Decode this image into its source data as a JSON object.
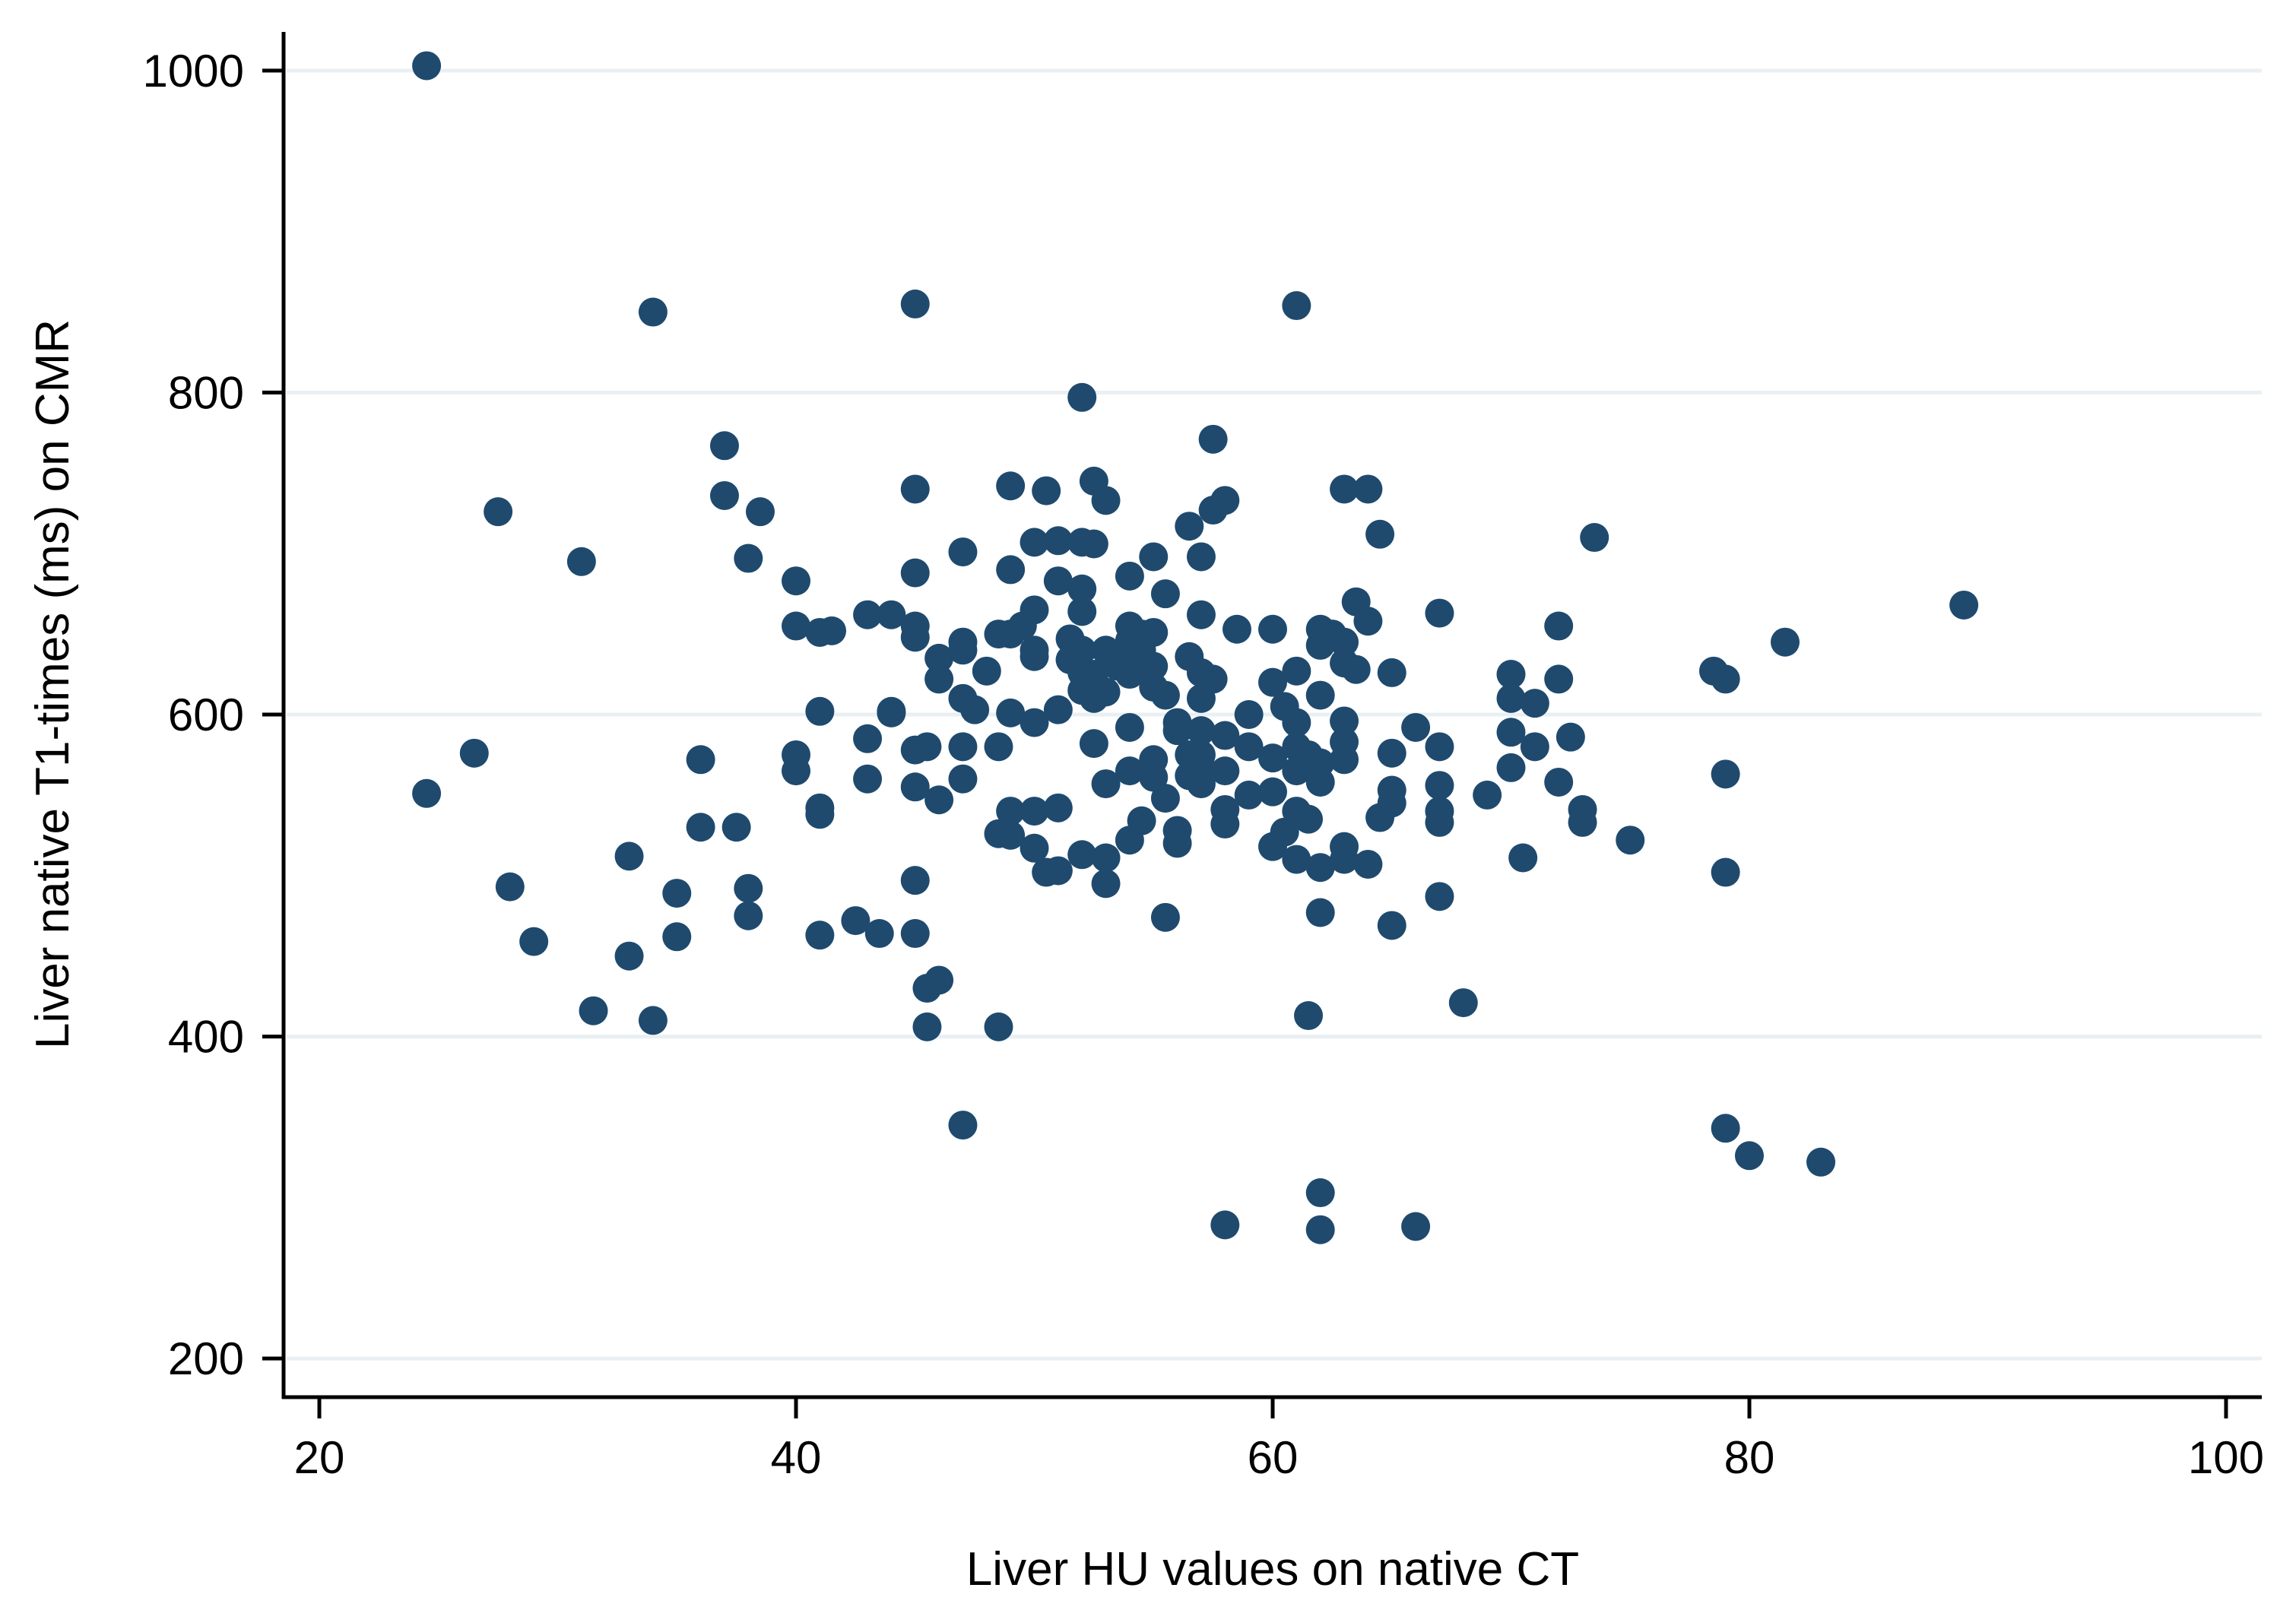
{
  "chart_data": {
    "type": "scatter",
    "title": "",
    "xlabel": "Liver HU values on native CT",
    "ylabel": "Liver native T1-times (ms) on CMR",
    "xlim": [
      18.5,
      101.5
    ],
    "ylim": [
      176,
      1024
    ],
    "x_ticks": [
      20,
      40,
      60,
      80,
      100
    ],
    "y_ticks": [
      200,
      400,
      600,
      800,
      1000
    ],
    "grid": "horizontal",
    "marker_color": "#1f4a6e",
    "grid_color": "#e9f0f4",
    "series": [
      {
        "points": [
          [
            24.5,
            1003
          ],
          [
            24.5,
            551
          ],
          [
            26.5,
            576
          ],
          [
            27.5,
            726
          ],
          [
            28,
            493
          ],
          [
            29,
            459
          ],
          [
            31,
            695
          ],
          [
            31.5,
            416
          ],
          [
            33,
            512
          ],
          [
            33,
            450
          ],
          [
            34,
            850
          ],
          [
            34,
            410
          ],
          [
            35,
            489
          ],
          [
            35,
            462
          ],
          [
            36,
            572
          ],
          [
            36,
            530
          ],
          [
            37,
            767
          ],
          [
            37,
            736
          ],
          [
            37.5,
            530
          ],
          [
            38,
            697
          ],
          [
            38,
            492
          ],
          [
            38,
            475
          ],
          [
            38.5,
            726
          ],
          [
            40,
            683
          ],
          [
            40,
            655
          ],
          [
            40,
            575
          ],
          [
            40,
            565
          ],
          [
            41,
            651
          ],
          [
            41,
            602
          ],
          [
            41,
            542
          ],
          [
            41,
            538
          ],
          [
            41,
            463
          ],
          [
            41.5,
            652
          ],
          [
            42.5,
            472
          ],
          [
            43,
            662
          ],
          [
            43,
            585
          ],
          [
            43,
            560
          ],
          [
            43.5,
            464
          ],
          [
            44,
            662
          ],
          [
            44,
            602
          ],
          [
            44,
            601
          ],
          [
            45,
            855
          ],
          [
            45,
            740
          ],
          [
            45,
            688
          ],
          [
            45,
            655
          ],
          [
            45,
            648
          ],
          [
            45,
            578
          ],
          [
            45,
            555
          ],
          [
            45,
            497
          ],
          [
            45,
            464
          ],
          [
            45.5,
            580
          ],
          [
            45.5,
            430
          ],
          [
            45.5,
            406
          ],
          [
            46,
            635
          ],
          [
            46,
            622
          ],
          [
            46,
            547
          ],
          [
            46,
            435
          ],
          [
            47,
            701
          ],
          [
            47,
            645
          ],
          [
            47,
            640
          ],
          [
            47,
            610
          ],
          [
            47,
            580
          ],
          [
            47,
            560
          ],
          [
            47,
            345
          ],
          [
            47.5,
            603
          ],
          [
            48,
            627
          ],
          [
            48.5,
            650
          ],
          [
            48.5,
            580
          ],
          [
            48.5,
            526
          ],
          [
            48.5,
            406
          ],
          [
            49,
            742
          ],
          [
            49,
            690
          ],
          [
            49,
            650
          ],
          [
            49,
            601
          ],
          [
            49,
            540
          ],
          [
            49,
            525
          ],
          [
            49.5,
            655
          ],
          [
            50,
            707
          ],
          [
            50,
            665
          ],
          [
            50,
            640
          ],
          [
            50,
            636
          ],
          [
            50,
            595
          ],
          [
            50,
            540
          ],
          [
            50,
            517
          ],
          [
            50.5,
            739
          ],
          [
            50.5,
            502
          ],
          [
            51,
            708
          ],
          [
            51,
            683
          ],
          [
            51,
            603
          ],
          [
            51,
            542
          ],
          [
            51,
            503
          ],
          [
            51.5,
            647
          ],
          [
            51.5,
            634
          ],
          [
            52,
            797
          ],
          [
            52,
            707
          ],
          [
            52,
            678
          ],
          [
            52,
            664
          ],
          [
            52,
            640
          ],
          [
            52,
            626
          ],
          [
            52,
            615
          ],
          [
            52,
            513
          ],
          [
            52.5,
            745
          ],
          [
            52.5,
            706
          ],
          [
            52.5,
            625
          ],
          [
            52.5,
            610
          ],
          [
            52.5,
            582
          ],
          [
            53,
            733
          ],
          [
            53,
            640
          ],
          [
            53,
            614
          ],
          [
            53,
            557
          ],
          [
            53,
            511
          ],
          [
            53,
            495
          ],
          [
            53.5,
            630
          ],
          [
            53.5,
            637
          ],
          [
            54,
            686
          ],
          [
            54,
            655
          ],
          [
            54,
            646
          ],
          [
            54,
            625
          ],
          [
            54,
            592
          ],
          [
            54,
            565
          ],
          [
            54,
            522
          ],
          [
            54.5,
            650
          ],
          [
            54.5,
            640
          ],
          [
            54.5,
            628
          ],
          [
            54.5,
            534
          ],
          [
            55,
            698
          ],
          [
            55,
            651
          ],
          [
            55,
            630
          ],
          [
            55,
            617
          ],
          [
            55,
            572
          ],
          [
            55,
            561
          ],
          [
            55.5,
            675
          ],
          [
            55.5,
            612
          ],
          [
            55.5,
            548
          ],
          [
            55.5,
            474
          ],
          [
            56,
            595
          ],
          [
            56,
            590
          ],
          [
            56,
            528
          ],
          [
            56,
            520
          ],
          [
            56.5,
            717
          ],
          [
            56.5,
            636
          ],
          [
            56.5,
            575
          ],
          [
            56.5,
            562
          ],
          [
            57,
            698
          ],
          [
            57,
            662
          ],
          [
            57,
            626
          ],
          [
            57,
            610
          ],
          [
            57,
            590
          ],
          [
            57,
            575
          ],
          [
            57,
            567
          ],
          [
            57,
            557
          ],
          [
            57.5,
            771
          ],
          [
            57.5,
            727
          ],
          [
            57.5,
            622
          ],
          [
            58,
            733
          ],
          [
            58,
            587
          ],
          [
            58,
            565
          ],
          [
            58,
            541
          ],
          [
            58,
            532
          ],
          [
            58,
            283
          ],
          [
            58.5,
            653
          ],
          [
            59,
            600
          ],
          [
            59,
            580
          ],
          [
            59,
            550
          ],
          [
            60,
            653
          ],
          [
            60,
            620
          ],
          [
            60,
            573
          ],
          [
            60,
            552
          ],
          [
            60,
            518
          ],
          [
            60.5,
            605
          ],
          [
            60.5,
            527
          ],
          [
            61,
            854
          ],
          [
            61,
            627
          ],
          [
            61,
            595
          ],
          [
            61,
            580
          ],
          [
            61,
            565
          ],
          [
            61,
            540
          ],
          [
            61,
            510
          ],
          [
            61.5,
            575
          ],
          [
            61.5,
            535
          ],
          [
            61.5,
            413
          ],
          [
            62,
            653
          ],
          [
            62,
            643
          ],
          [
            62,
            612
          ],
          [
            62,
            570
          ],
          [
            62,
            558
          ],
          [
            62,
            505
          ],
          [
            62,
            477
          ],
          [
            62,
            303
          ],
          [
            62,
            280
          ],
          [
            62.5,
            650
          ],
          [
            63,
            740
          ],
          [
            63,
            645
          ],
          [
            63,
            632
          ],
          [
            63,
            596
          ],
          [
            63,
            583
          ],
          [
            63,
            572
          ],
          [
            63,
            518
          ],
          [
            63,
            510
          ],
          [
            63.5,
            670
          ],
          [
            63.5,
            628
          ],
          [
            64,
            740
          ],
          [
            64,
            658
          ],
          [
            64,
            507
          ],
          [
            64.5,
            712
          ],
          [
            64.5,
            536
          ],
          [
            65,
            626
          ],
          [
            65,
            576
          ],
          [
            65,
            553
          ],
          [
            65,
            545
          ],
          [
            65,
            469
          ],
          [
            66,
            592
          ],
          [
            66,
            282
          ],
          [
            67,
            663
          ],
          [
            67,
            580
          ],
          [
            67,
            556
          ],
          [
            67,
            540
          ],
          [
            67,
            533
          ],
          [
            67,
            487
          ],
          [
            68,
            421
          ],
          [
            69,
            550
          ],
          [
            70,
            625
          ],
          [
            70,
            610
          ],
          [
            70,
            589
          ],
          [
            70,
            567
          ],
          [
            70.5,
            511
          ],
          [
            71,
            607
          ],
          [
            71,
            580
          ],
          [
            72,
            655
          ],
          [
            72,
            622
          ],
          [
            72,
            558
          ],
          [
            72.5,
            586
          ],
          [
            73,
            541
          ],
          [
            73,
            533
          ],
          [
            73.5,
            710
          ],
          [
            75,
            522
          ],
          [
            78.5,
            627
          ],
          [
            79,
            622
          ],
          [
            79,
            563
          ],
          [
            79,
            502
          ],
          [
            79,
            343
          ],
          [
            80,
            326
          ],
          [
            81.5,
            645
          ],
          [
            83,
            322
          ],
          [
            89,
            668
          ]
        ]
      }
    ]
  }
}
